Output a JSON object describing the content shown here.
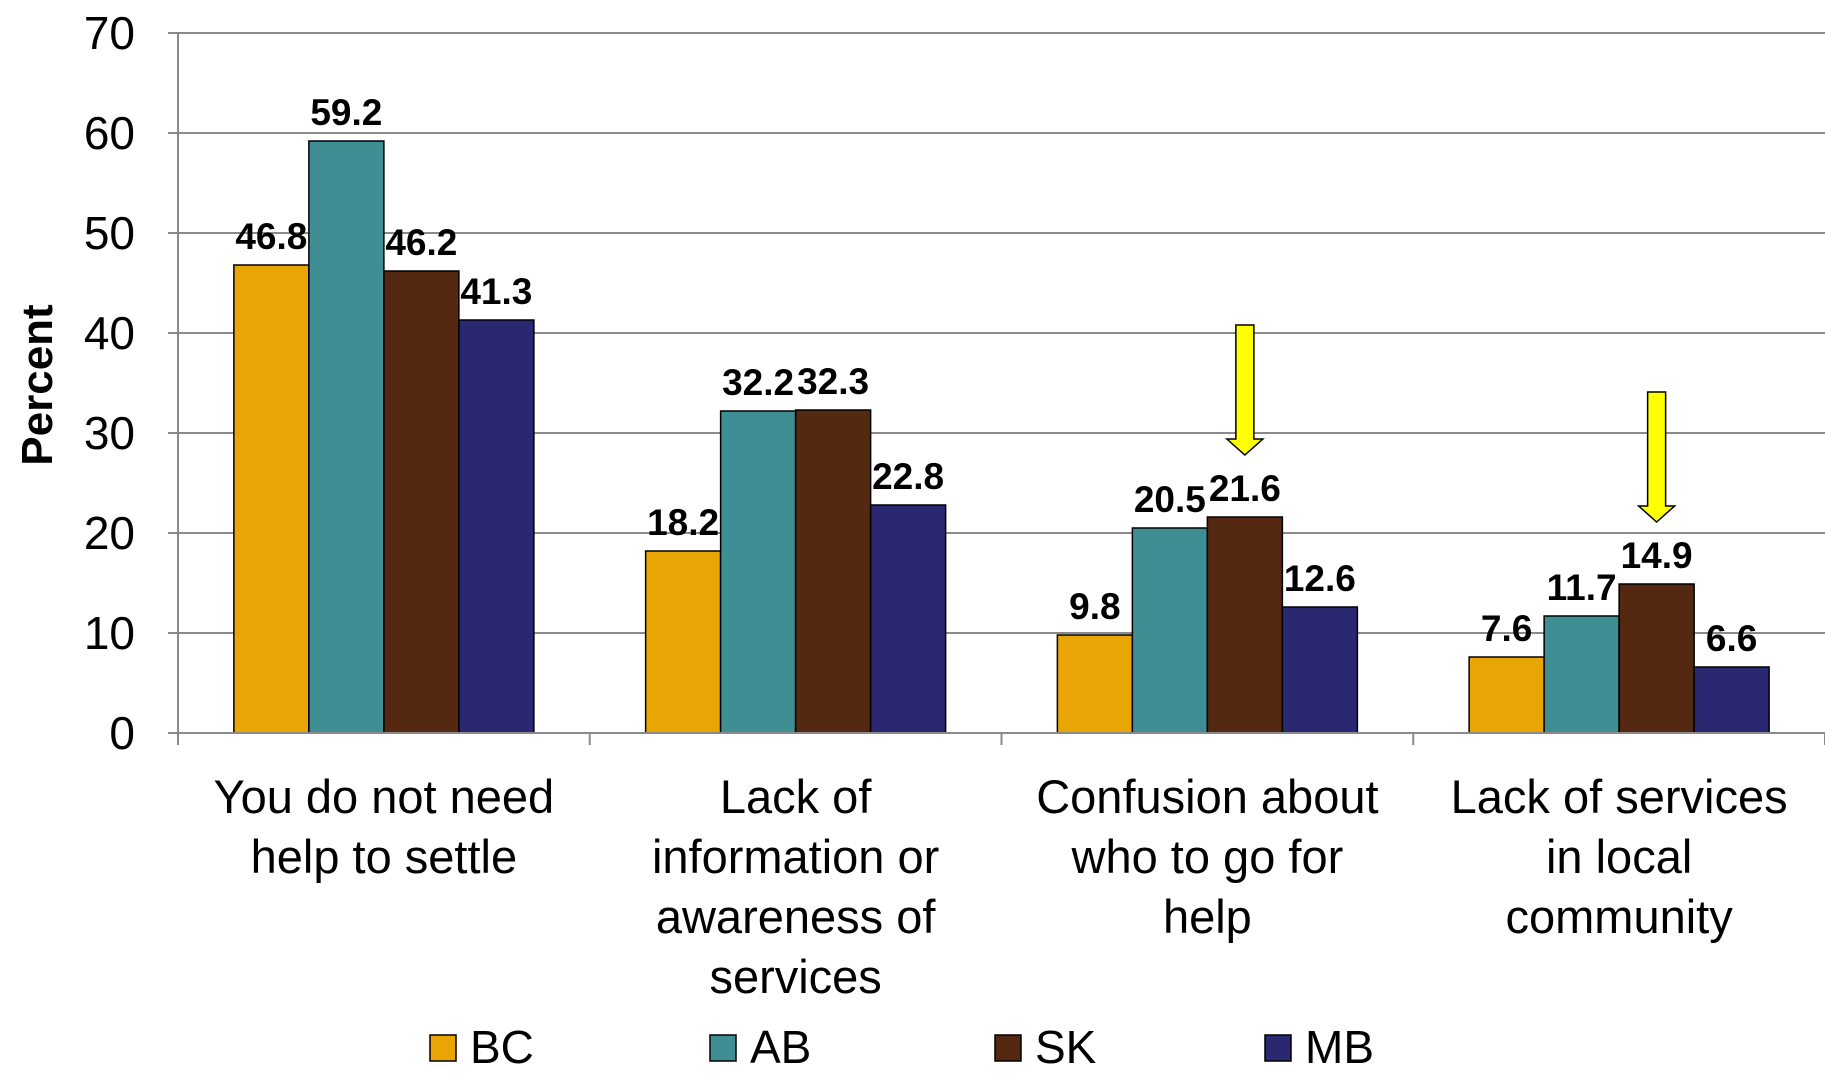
{
  "chart_data": {
    "type": "bar",
    "ylabel": "Percent",
    "xlabel": "",
    "ylim": [
      0,
      70
    ],
    "yticks": [
      0,
      10,
      20,
      30,
      40,
      50,
      60,
      70
    ],
    "grid": true,
    "legend_placement": "bottom",
    "categories": [
      [
        "You do not need",
        "help to settle"
      ],
      [
        "Lack of",
        "information or",
        "awareness of",
        "services"
      ],
      [
        "Confusion about",
        "who to go for",
        "help"
      ],
      [
        "Lack of services",
        "in local",
        "community"
      ]
    ],
    "series": [
      {
        "name": "BC",
        "color": "#E8A504",
        "values": [
          46.8,
          18.2,
          9.8,
          7.6
        ]
      },
      {
        "name": "AB",
        "color": "#3E8E93",
        "values": [
          59.2,
          32.2,
          20.5,
          11.7
        ]
      },
      {
        "name": "SK",
        "color": "#542811",
        "values": [
          46.2,
          32.3,
          21.6,
          14.9
        ]
      },
      {
        "name": "MB",
        "color": "#2A2870",
        "values": [
          41.3,
          22.8,
          12.6,
          6.6
        ]
      }
    ],
    "annotations": [
      {
        "type": "arrow-down",
        "color": "#FFFF00",
        "category_index": 2,
        "series_index": 2
      },
      {
        "type": "arrow-down",
        "color": "#FFFF00",
        "category_index": 3,
        "series_index": 2
      }
    ]
  }
}
